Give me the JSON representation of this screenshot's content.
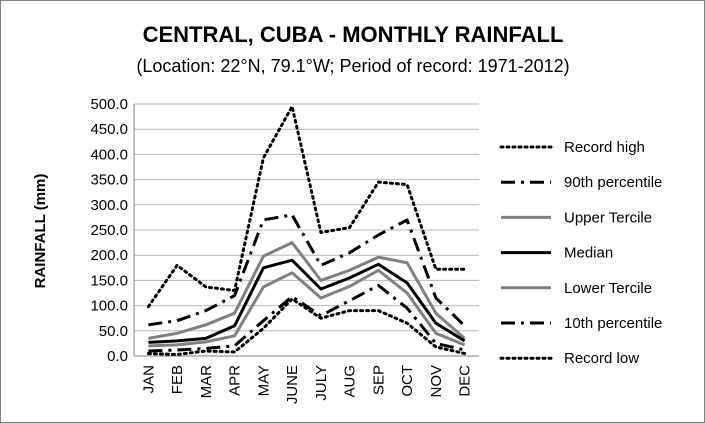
{
  "chart_data": {
    "type": "line",
    "title": "CENTRAL, CUBA - MONTHLY RAINFALL",
    "subtitle": "(Location: 22°N, 79.1°W; Period of record: 1971-2012)",
    "xlabel": "",
    "ylabel": "RAINFALL (mm)",
    "ylim": [
      0,
      500
    ],
    "y_ticks": [
      "0.0",
      "50.0",
      "100.0",
      "150.0",
      "200.0",
      "250.0",
      "300.0",
      "350.0",
      "400.0",
      "450.0",
      "500.0"
    ],
    "categories": [
      "JAN",
      "FEB",
      "MAR",
      "APR",
      "MAY",
      "JUNE",
      "JULY",
      "AUG",
      "SEP",
      "OCT",
      "NOV",
      "DEC"
    ],
    "grid": "horizontal",
    "legend": "right",
    "series": [
      {
        "name": "Record high",
        "color": "#000000",
        "style": "dotted",
        "values": [
          98,
          180,
          137,
          130,
          393,
          495,
          245,
          255,
          345,
          340,
          172,
          172
        ]
      },
      {
        "name": "90th percentile",
        "color": "#000000",
        "style": "dashdot",
        "values": [
          62,
          70,
          90,
          120,
          270,
          280,
          180,
          205,
          240,
          270,
          115,
          60
        ]
      },
      {
        "name": "Upper Tercile",
        "color": "#808080",
        "style": "solid",
        "values": [
          35,
          45,
          62,
          85,
          198,
          225,
          150,
          170,
          196,
          185,
          85,
          35
        ]
      },
      {
        "name": "Median",
        "color": "#000000",
        "style": "solid",
        "values": [
          27,
          30,
          35,
          60,
          175,
          190,
          133,
          155,
          182,
          145,
          65,
          30
        ]
      },
      {
        "name": "Lower Tercile",
        "color": "#808080",
        "style": "solid",
        "values": [
          20,
          22,
          28,
          40,
          137,
          165,
          115,
          138,
          170,
          125,
          45,
          22
        ]
      },
      {
        "name": "10th percentile",
        "color": "#000000",
        "style": "dashdot",
        "values": [
          10,
          12,
          15,
          20,
          70,
          118,
          80,
          110,
          140,
          95,
          25,
          12
        ]
      },
      {
        "name": "Record low",
        "color": "#000000",
        "style": "dotted",
        "values": [
          5,
          3,
          10,
          8,
          55,
          113,
          75,
          90,
          90,
          65,
          18,
          5
        ]
      }
    ]
  }
}
